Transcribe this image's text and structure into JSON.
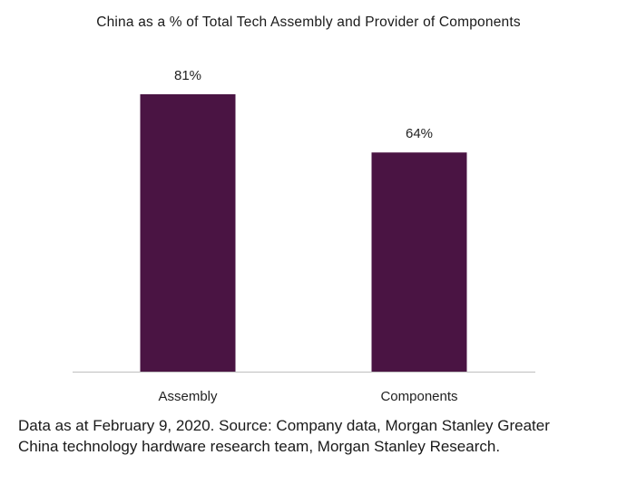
{
  "chart_data": {
    "type": "bar",
    "title": "China as a % of Total Tech Assembly and Provider of Components",
    "categories": [
      "Assembly",
      "Components"
    ],
    "values": [
      81,
      64
    ],
    "value_labels": [
      "81%",
      "64%"
    ],
    "ylim": [
      0,
      81
    ],
    "grid": false,
    "bar_color": "#4a1443",
    "axis_color": "#bfbfbf"
  },
  "footnote": "Data as at February 9, 2020. Source: Company data, Morgan Stanley Greater China technology hardware research team, Morgan Stanley Research."
}
